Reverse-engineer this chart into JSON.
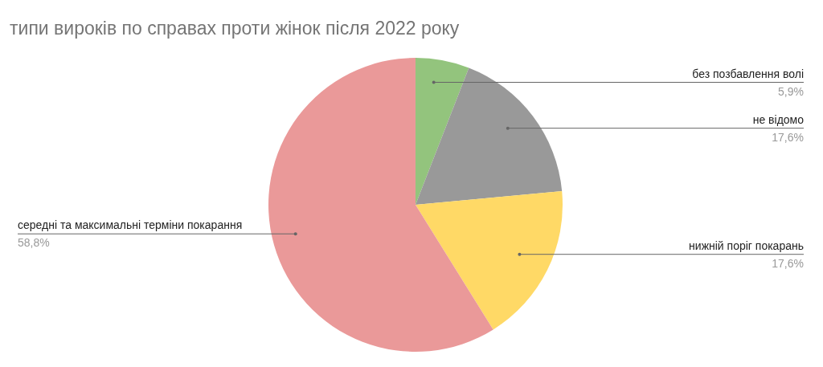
{
  "chart_data": {
    "type": "pie",
    "title": "типи вироків по справах проти жінок після 2022 року",
    "categories": [
      "без позбавлення волі",
      "не відомо",
      "нижній поріг покарань",
      "середні та максимальні терміни покарання"
    ],
    "values": [
      5.9,
      17.6,
      17.6,
      58.8
    ],
    "value_labels": [
      "5,9%",
      "17,6%",
      "17,6%",
      "58,8%"
    ],
    "colors": [
      "#93c47d",
      "#999999",
      "#ffd966",
      "#ea9999"
    ]
  }
}
